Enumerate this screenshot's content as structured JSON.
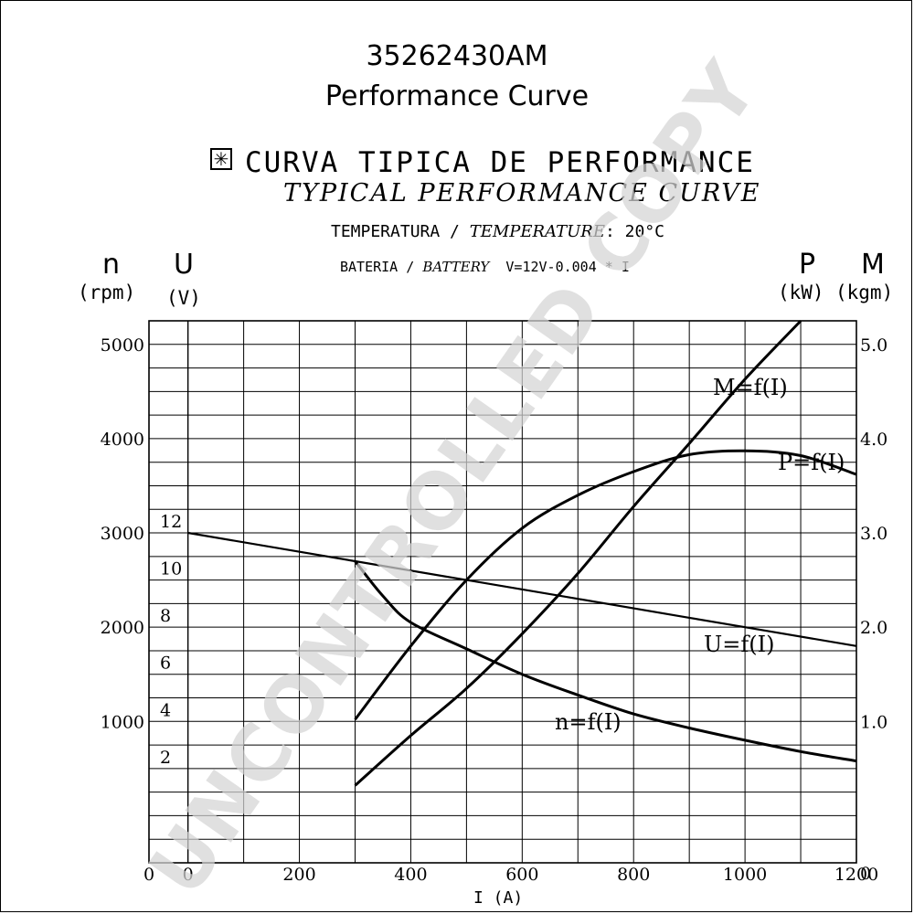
{
  "header": {
    "part_number": "35262430AM",
    "subtitle": "Performance Curve",
    "title_es": "CURVA TIPICA DE PERFORMANCE",
    "title_en": "TYPICAL PERFORMANCE CURVE",
    "temperature_es": "TEMPERATURA /",
    "temperature_en": "TEMPERATURE",
    "temperature_value": ": 20°C",
    "battery_es": "BATERIA /",
    "battery_en": "BATTERY",
    "battery_formula": "V=12V-0.004 * I",
    "star_symbol": "✳"
  },
  "watermark": "UNCONTROLLED COPY",
  "axes": {
    "n_symbol": "n",
    "n_unit": "(rpm)",
    "u_symbol": "U",
    "u_unit": "(V)",
    "p_symbol": "P",
    "p_unit": "(kW)",
    "m_symbol": "M",
    "m_unit": "(kgm)",
    "x_label": "I (A)"
  },
  "chart_data": {
    "type": "line",
    "grid": true,
    "x": {
      "label": "I (A)",
      "range": [
        -70,
        1200
      ],
      "ticks": [
        0,
        200,
        400,
        600,
        800,
        1000,
        1200
      ],
      "tick_labels": [
        "0",
        "200",
        "400",
        "600",
        "800",
        "1000",
        "1200"
      ],
      "origin_label": "0"
    },
    "y_left_rpm": {
      "label": "n (rpm)",
      "range": [
        -500,
        5250
      ],
      "ticks": [
        1000,
        2000,
        3000,
        4000,
        5000
      ],
      "tick_labels": [
        "1000",
        "2000",
        "3000",
        "4000",
        "5000"
      ]
    },
    "y_left_volt": {
      "label": "U (V)",
      "ticks": [
        2,
        4,
        6,
        8,
        10,
        12
      ],
      "tick_labels": [
        "2",
        "4",
        "6",
        "8",
        "10",
        "12"
      ]
    },
    "y_right": {
      "label": "P (kW) / M (kgm)",
      "range": [
        -0.5,
        5.25
      ],
      "ticks": [
        0,
        1.0,
        2.0,
        3.0,
        4.0,
        5.0
      ],
      "tick_labels": [
        "0",
        "1.0",
        "2.0",
        "3.0",
        "4.0",
        "5.0"
      ]
    },
    "series": [
      {
        "name": "U=f(I)",
        "axis": "rpm_scale",
        "x": [
          0,
          300,
          500,
          700,
          900,
          1000,
          1200
        ],
        "values": [
          3000,
          2700,
          2500,
          2300,
          2100,
          2000,
          1800
        ]
      },
      {
        "name": "n=f(I)",
        "axis": "rpm_scale",
        "x": [
          300,
          350,
          400,
          500,
          600,
          700,
          800,
          900,
          1000,
          1100,
          1200
        ],
        "values": [
          2700,
          2330,
          2050,
          1770,
          1500,
          1280,
          1080,
          930,
          800,
          680,
          580
        ]
      },
      {
        "name": "P=f(I)",
        "axis": "right",
        "x": [
          300,
          400,
          500,
          600,
          700,
          800,
          900,
          1000,
          1100,
          1200
        ],
        "values": [
          1.02,
          1.8,
          2.5,
          3.05,
          3.4,
          3.65,
          3.83,
          3.87,
          3.82,
          3.62
        ]
      },
      {
        "name": "M=f(I)",
        "axis": "right",
        "x": [
          300,
          400,
          500,
          600,
          700,
          800,
          900,
          1000,
          1100
        ],
        "values": [
          0.32,
          0.85,
          1.35,
          1.93,
          2.57,
          3.28,
          3.95,
          4.63,
          5.25
        ]
      }
    ]
  }
}
